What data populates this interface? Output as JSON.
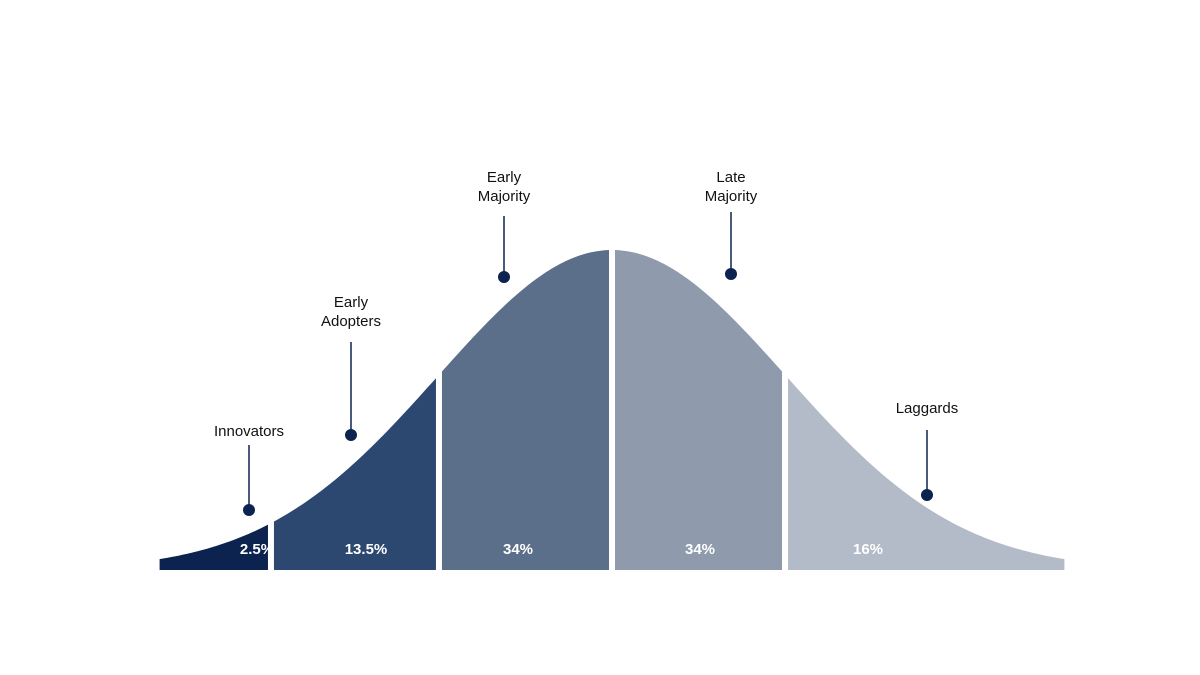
{
  "chart_data": {
    "type": "bell",
    "categories": [
      "Innovators",
      "Early Adopters",
      "Early Majority",
      "Late Majority",
      "Laggards"
    ],
    "values": [
      2.5,
      13.5,
      34,
      34,
      16
    ],
    "value_labels": [
      "2.5%",
      "13.5%",
      "34%",
      "34%",
      "16%"
    ],
    "colors": [
      "#0c2350",
      "#2c4770",
      "#5c6f8a",
      "#8f9bac",
      "#b3bbc8"
    ]
  }
}
